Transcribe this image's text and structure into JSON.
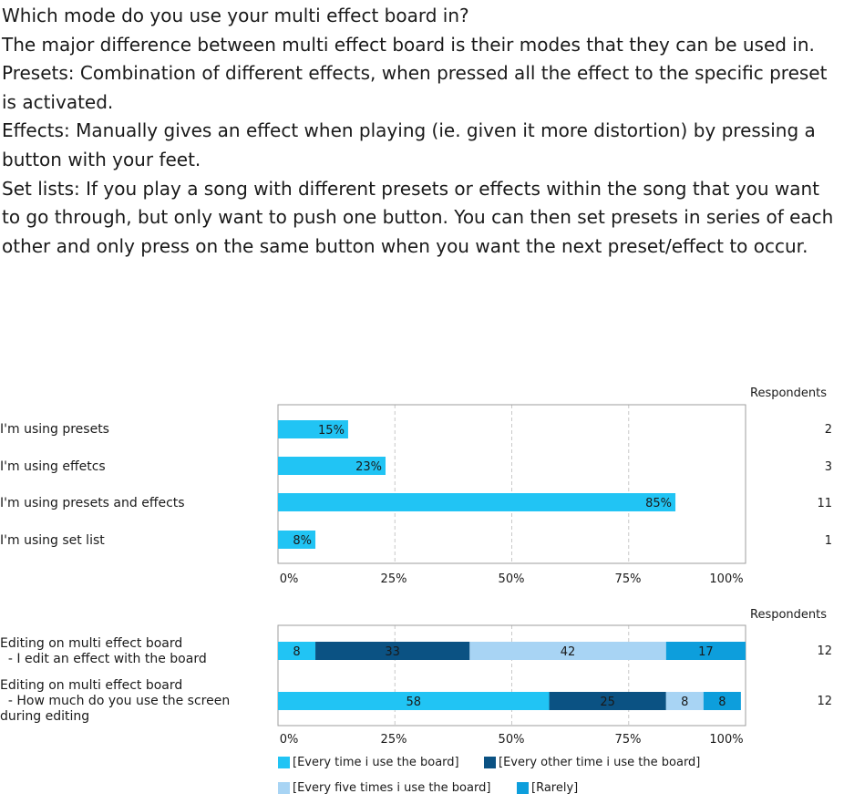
{
  "question": {
    "title": "Which mode do you use your multi effect board in?",
    "lines": [
      "The major difference between multi effect board is their modes that they can be used in.",
      "Presets: Combination of different effects, when pressed all the effect to the specific preset is activated.",
      "Effects: Manually gives an effect when playing (ie. given it more distortion) by pressing a button with your feet.",
      "Set lists: If you play a song with different presets or effects within the song that you want to go through, but only want to push one button. You can then set presets in series of each other and only press on the same button when you want the next preset/effect to occur."
    ]
  },
  "colors": {
    "every_time": "#21c4f4",
    "every_other": "#0b5283",
    "every_five": "#a8d4f4",
    "rarely": "#0d9edc",
    "grid": "#c8c8c8",
    "frame": "#9e9e9e"
  },
  "chart_data": [
    {
      "type": "bar",
      "orientation": "horizontal",
      "categories": [
        "I'm using presets",
        "I'm using effetcs",
        "I'm using presets and effects",
        "I'm using set list"
      ],
      "values": [
        15,
        23,
        85,
        8
      ],
      "value_labels": [
        "15%",
        "23%",
        "85%",
        "8%"
      ],
      "respondents_header": "Respondents",
      "respondents": [
        2,
        3,
        11,
        1
      ],
      "xticks": [
        "0%",
        "25%",
        "50%",
        "75%",
        "100%"
      ],
      "xlim": [
        0,
        100
      ],
      "grid": true
    },
    {
      "type": "bar",
      "orientation": "horizontal",
      "stacked": true,
      "categories": [
        [
          "Editing on multi effect board",
          "  - I edit an effect with the board"
        ],
        [
          "Editing on multi effect board",
          "  - How much do you use the screen",
          "during editing"
        ]
      ],
      "series": [
        {
          "name": "[Every time i use the board]",
          "values": [
            8,
            58
          ]
        },
        {
          "name": "[Every other time i use the board]",
          "values": [
            33,
            25
          ]
        },
        {
          "name": "[Every five times i use the board]",
          "values": [
            42,
            8
          ]
        },
        {
          "name": "[Rarely]",
          "values": [
            17,
            8
          ]
        }
      ],
      "respondents_header": "Respondents",
      "respondents": [
        12,
        12
      ],
      "xticks": [
        "0%",
        "25%",
        "50%",
        "75%",
        "100%"
      ],
      "xlim": [
        0,
        100
      ],
      "legend_position": "bottom",
      "grid": true
    }
  ]
}
